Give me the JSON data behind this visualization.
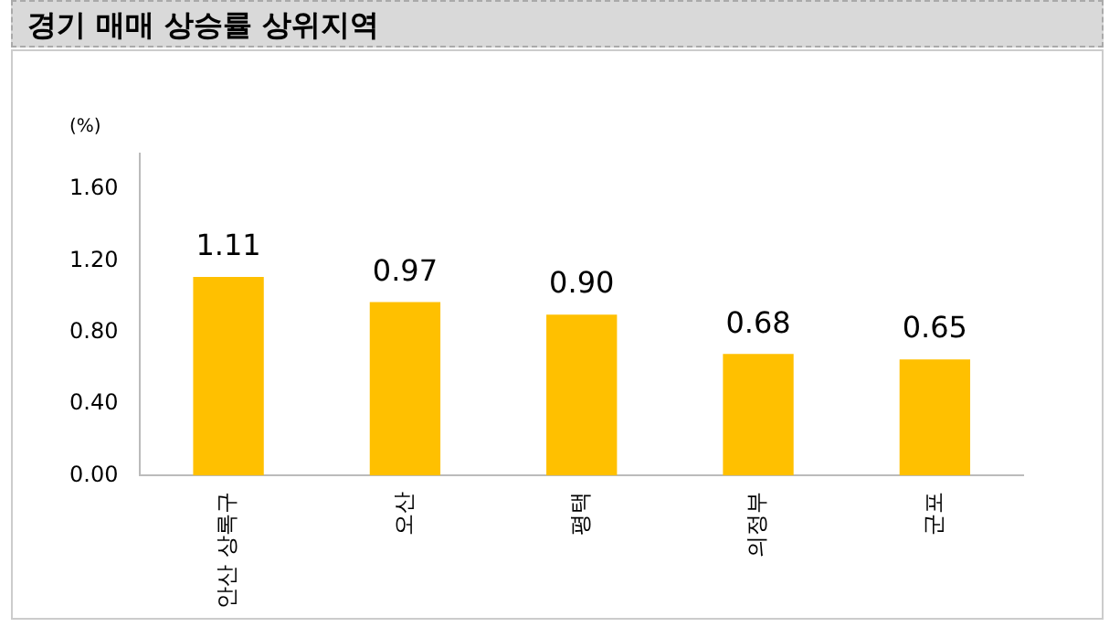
{
  "chart_data": {
    "type": "bar",
    "title": "경기 매매 상승률 상위지역",
    "ylabel": "(%)",
    "categories": [
      "안산 상록구",
      "오산",
      "평택",
      "의정부",
      "군포"
    ],
    "values": [
      1.11,
      0.97,
      0.9,
      0.68,
      0.65
    ],
    "color": "#ffc000",
    "ylim": [
      0,
      1.8
    ],
    "yticks": [
      {
        "value": 0,
        "label": "0.00"
      },
      {
        "value": 0.4,
        "label": "0.40"
      },
      {
        "value": 0.8,
        "label": "0.80"
      },
      {
        "value": 1.2,
        "label": "1.20"
      },
      {
        "value": 1.6,
        "label": "1.60"
      }
    ],
    "value_labels": [
      "1.11",
      "0.97",
      "0.90",
      "0.68",
      "0.65"
    ],
    "grid": false,
    "legend": false
  }
}
